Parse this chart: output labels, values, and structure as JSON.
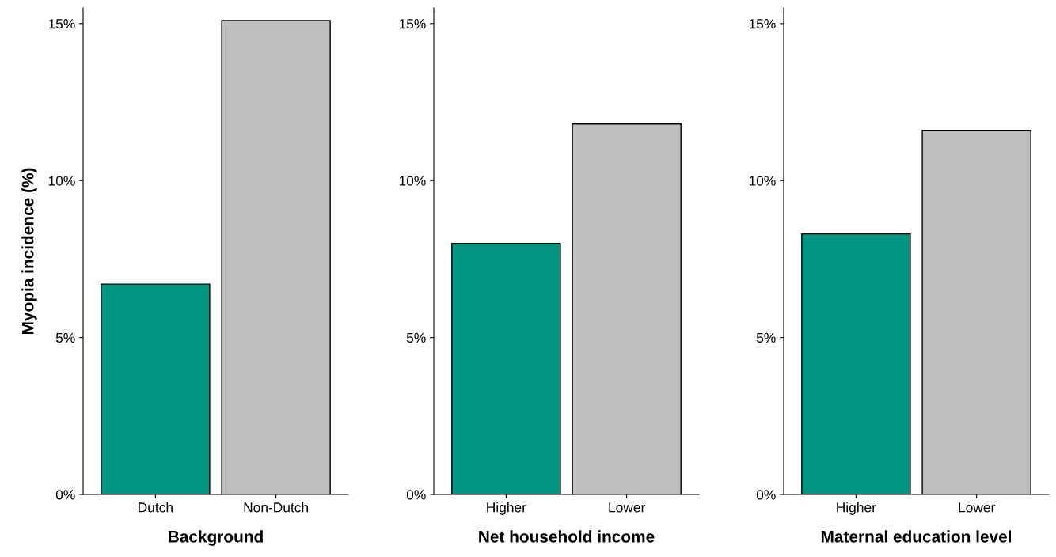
{
  "chart_data": [
    {
      "type": "bar",
      "categories": [
        "Dutch",
        "Non-Dutch"
      ],
      "values": [
        6.7,
        15.1
      ],
      "colors": [
        "#009681",
        "#bebebe"
      ],
      "xlabel": "Background",
      "ylabel": "Myopia incidence (%)",
      "ylim": [
        0,
        15.5
      ],
      "yticks": [
        {
          "value": 0,
          "label": "0%"
        },
        {
          "value": 5,
          "label": "5%"
        },
        {
          "value": 10,
          "label": "10%"
        },
        {
          "value": 15,
          "label": "15%"
        }
      ]
    },
    {
      "type": "bar",
      "categories": [
        "Higher",
        "Lower"
      ],
      "values": [
        8.0,
        11.8
      ],
      "colors": [
        "#009681",
        "#bebebe"
      ],
      "xlabel": "Net household income",
      "ylim": [
        0,
        15.5
      ],
      "yticks": [
        {
          "value": 0,
          "label": "0%"
        },
        {
          "value": 5,
          "label": "5%"
        },
        {
          "value": 10,
          "label": "10%"
        },
        {
          "value": 15,
          "label": "15%"
        }
      ]
    },
    {
      "type": "bar",
      "categories": [
        "Higher",
        "Lower"
      ],
      "values": [
        8.3,
        11.6
      ],
      "colors": [
        "#009681",
        "#bebebe"
      ],
      "xlabel": "Maternal education level",
      "ylim": [
        0,
        15.5
      ],
      "yticks": [
        {
          "value": 0,
          "label": "0%"
        },
        {
          "value": 5,
          "label": "5%"
        },
        {
          "value": 10,
          "label": "10%"
        },
        {
          "value": 15,
          "label": "15%"
        }
      ]
    }
  ]
}
